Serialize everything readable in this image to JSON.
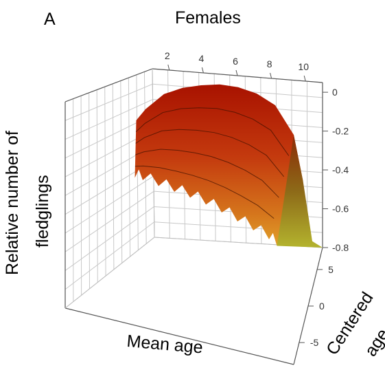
{
  "panel_letter": "A",
  "chart_data": {
    "type": "surface3d",
    "title": "Females",
    "zlabel": [
      "Relative number of",
      "fledglings"
    ],
    "xlabel": "Mean age",
    "ylabel": [
      "Centered",
      "age"
    ],
    "x_ticks": [
      2,
      4,
      6,
      8,
      10
    ],
    "y_ticks": [
      5,
      0,
      -5
    ],
    "z_ticks": [
      0,
      -0.2,
      -0.4,
      -0.6,
      -0.8
    ],
    "x_range": [
      1,
      11
    ],
    "y_range": [
      -8,
      8
    ],
    "z_range": [
      -0.8,
      0.05
    ],
    "grid": true,
    "colors": {
      "high": "#b51a00",
      "mid": "#c4561a",
      "low": "#a7a32a",
      "grid": "#c8c8c8",
      "box": "#555555"
    },
    "surface_profile": {
      "description_axis": "Mean age",
      "x": [
        1.5,
        2,
        3,
        4,
        5,
        6,
        7,
        8,
        9,
        10,
        10.5,
        11
      ],
      "z_at_centered_age_max": [
        -0.25,
        -0.18,
        -0.08,
        -0.03,
        0.0,
        0.02,
        0.02,
        0.0,
        -0.05,
        -0.2,
        -0.45,
        -0.78
      ],
      "z_at_centered_age_min": [
        -0.36,
        -0.36,
        -0.37,
        -0.38,
        -0.39,
        -0.41,
        -0.44,
        -0.48,
        -0.52,
        -0.56,
        -0.6,
        -0.62
      ]
    }
  }
}
